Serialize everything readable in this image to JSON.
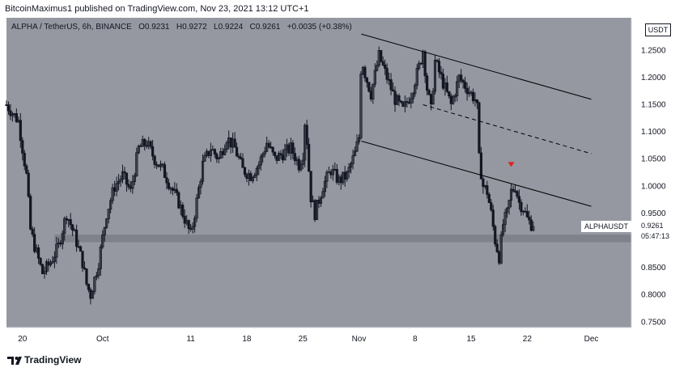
{
  "header": {
    "publish_line": "BitcoinMaximus1 published on TradingView.com, Nov 23, 2021 13:12 UTC+1"
  },
  "legend": {
    "symbol": "ALPHA / TetherUS, 6h, BINANCE",
    "open_label": "O",
    "open": "0.9231",
    "high_label": "H",
    "high": "0.9272",
    "low_label": "L",
    "low": "0.9224",
    "close_label": "C",
    "close": "0.9261",
    "change": "+0.0035 (+0.38%)"
  },
  "currency_badge": "USDT",
  "last_price": {
    "symbol": "ALPHAUSDT",
    "price": "0.9261",
    "countdown": "05:47:13"
  },
  "footer": {
    "brand": "TradingView"
  },
  "colors": {
    "background": "#9598a1",
    "candles": "#131722",
    "support_zone": "#7d8088",
    "marker": "#e02020"
  },
  "chart_data": {
    "type": "candlestick",
    "title": "ALPHA / TetherUS, 6h, BINANCE",
    "ylim": [
      0.74,
      1.31
    ],
    "y_ticks": [
      0.75,
      0.8,
      0.85,
      0.9,
      0.95,
      1.0,
      1.05,
      1.1,
      1.15,
      1.2,
      1.25
    ],
    "y_tick_labels": [
      "0.7500",
      "0.8000",
      "0.8500",
      "0.9000",
      "0.9500",
      "1.0000",
      "1.0500",
      "1.1000",
      "1.1500",
      "1.2000",
      "1.2500"
    ],
    "x_ticks": [
      {
        "day": 20,
        "label": "20"
      },
      {
        "day": 30,
        "label": "Oct"
      },
      {
        "day": 41,
        "label": "11"
      },
      {
        "day": 48,
        "label": "18"
      },
      {
        "day": 55,
        "label": "25"
      },
      {
        "day": 62,
        "label": "Nov"
      },
      {
        "day": 69,
        "label": "8"
      },
      {
        "day": 76,
        "label": "15"
      },
      {
        "day": 83,
        "label": "22"
      },
      {
        "day": 91,
        "label": "Dec"
      }
    ],
    "x_range_days": [
      18,
      96
    ],
    "x_reference": "day 1 = Sep 1 2021",
    "grid": false,
    "anchors": [
      [
        18.0,
        1.15
      ],
      [
        19.5,
        1.12
      ],
      [
        20.5,
        1.02
      ],
      [
        21.0,
        0.92
      ],
      [
        21.5,
        0.89
      ],
      [
        22.5,
        0.84
      ],
      [
        23.5,
        0.86
      ],
      [
        24.5,
        0.89
      ],
      [
        25.5,
        0.95
      ],
      [
        26.5,
        0.91
      ],
      [
        27.5,
        0.86
      ],
      [
        28.0,
        0.82
      ],
      [
        28.5,
        0.8
      ],
      [
        29.5,
        0.86
      ],
      [
        30.5,
        0.95
      ],
      [
        31.5,
        1.0
      ],
      [
        32.5,
        1.02
      ],
      [
        33.5,
        0.99
      ],
      [
        34.5,
        1.07
      ],
      [
        35.5,
        1.08
      ],
      [
        36.5,
        1.05
      ],
      [
        37.5,
        1.03
      ],
      [
        38.5,
        1.0
      ],
      [
        39.5,
        0.97
      ],
      [
        40.5,
        0.93
      ],
      [
        41.0,
        0.91
      ],
      [
        41.5,
        0.95
      ],
      [
        42.5,
        1.04
      ],
      [
        43.5,
        1.07
      ],
      [
        44.5,
        1.05
      ],
      [
        45.5,
        1.09
      ],
      [
        46.5,
        1.07
      ],
      [
        47.5,
        1.03
      ],
      [
        48.5,
        1.02
      ],
      [
        49.5,
        1.04
      ],
      [
        50.5,
        1.08
      ],
      [
        51.5,
        1.05
      ],
      [
        52.5,
        1.06
      ],
      [
        53.5,
        1.07
      ],
      [
        54.5,
        1.04
      ],
      [
        55.0,
        1.06
      ],
      [
        55.3,
        1.13
      ],
      [
        55.6,
        1.06
      ],
      [
        56.0,
        0.98
      ],
      [
        56.5,
        0.95
      ],
      [
        57.5,
        1.0
      ],
      [
        58.5,
        1.03
      ],
      [
        59.5,
        1.01
      ],
      [
        60.5,
        1.02
      ],
      [
        61.5,
        1.06
      ],
      [
        62.0,
        1.09
      ],
      [
        62.3,
        1.24
      ],
      [
        62.7,
        1.21
      ],
      [
        63.5,
        1.17
      ],
      [
        64.5,
        1.24
      ],
      [
        65.5,
        1.2
      ],
      [
        66.5,
        1.16
      ],
      [
        67.5,
        1.14
      ],
      [
        68.5,
        1.17
      ],
      [
        69.5,
        1.22
      ],
      [
        70.0,
        1.25
      ],
      [
        70.5,
        1.18
      ],
      [
        71.0,
        1.14
      ],
      [
        71.5,
        1.23
      ],
      [
        72.5,
        1.19
      ],
      [
        73.5,
        1.15
      ],
      [
        74.5,
        1.2
      ],
      [
        75.5,
        1.18
      ],
      [
        76.5,
        1.16
      ],
      [
        76.8,
        1.14
      ],
      [
        77.0,
        1.05
      ],
      [
        77.5,
        1.0
      ],
      [
        78.0,
        0.99
      ],
      [
        78.5,
        0.95
      ],
      [
        79.0,
        0.9
      ],
      [
        79.5,
        0.87
      ],
      [
        80.0,
        0.93
      ],
      [
        80.5,
        0.95
      ],
      [
        81.0,
        0.99
      ],
      [
        81.5,
        1.0
      ],
      [
        82.0,
        0.97
      ],
      [
        82.5,
        0.96
      ],
      [
        83.0,
        0.94
      ],
      [
        83.5,
        0.93
      ],
      [
        83.9,
        0.926
      ]
    ],
    "channel": {
      "upper": {
        "start": [
          62.3,
          1.28
        ],
        "end": [
          91.0,
          1.16
        ]
      },
      "middle": {
        "start": [
          70.0,
          1.15
        ],
        "end": [
          91.0,
          1.06
        ]
      },
      "lower": {
        "start": [
          62.3,
          1.083
        ],
        "end": [
          91.0,
          0.963
        ]
      }
    },
    "support_zone": {
      "x_start": 24.0,
      "y_low": 0.897,
      "y_high": 0.911
    },
    "marker": {
      "day": 81.0,
      "price": 1.04,
      "shape": "down-triangle"
    }
  }
}
